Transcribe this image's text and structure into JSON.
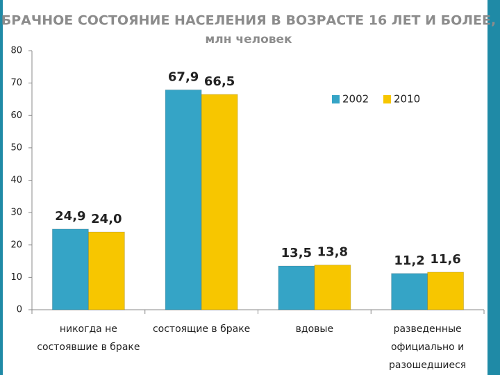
{
  "chart_data": {
    "type": "bar",
    "title": "БРАЧНОЕ СОСТОЯНИЕ НАСЕЛЕНИЯ В ВОЗРАСТЕ 16 ЛЕТ И БОЛЕЕ,",
    "subtitle": "млн человек",
    "categories": [
      "никогда не\nсостоявшие в браке",
      "состоящие в браке",
      "вдовые",
      "разведенные\nофициально и\nразошедшиеся"
    ],
    "series": [
      {
        "name": "2002",
        "color": "#35a4c6",
        "values": [
          24.9,
          67.9,
          13.5,
          11.2
        ],
        "value_labels": [
          "24,9",
          "67,9",
          "13,5",
          "11,2"
        ]
      },
      {
        "name": "2010",
        "color": "#f7c600",
        "values": [
          24.0,
          66.5,
          13.8,
          11.6
        ],
        "value_labels": [
          "24,0",
          "66,5",
          "13,8",
          "11,6"
        ]
      }
    ],
    "ylim": [
      0,
      80
    ],
    "yticks": [
      0,
      10,
      20,
      30,
      40,
      50,
      60,
      70,
      80
    ],
    "legend": "top-right"
  }
}
